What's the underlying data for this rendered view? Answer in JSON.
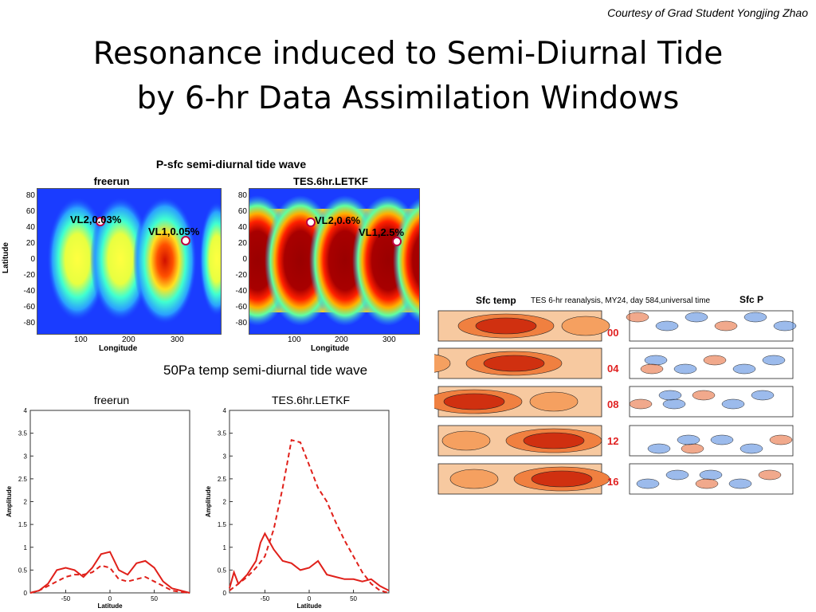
{
  "courtesy": "Courtesy of Grad Student Yongjing Zhao",
  "title_line1": "Resonance induced to Semi-Diurnal Tide",
  "title_line2": "by 6-hr Data Assimilation  Windows",
  "psfc": {
    "header": "P-sfc semi-diurnal tide wave",
    "panel_left_title": "freerun",
    "panel_right_title": "TES.6hr.LETKF",
    "y_ticks": [
      "80",
      "60",
      "40",
      "20",
      "0",
      "-20",
      "-40",
      "-60",
      "-80"
    ],
    "x_ticks": [
      "100",
      "200",
      "300"
    ],
    "ylabel": "Latitude",
    "xlabel": "Longitude",
    "left_vl2": "VL2,0.03%",
    "left_vl1": "VL1,0.05%",
    "right_vl2": "VL2,0.6%",
    "right_vl1": "VL1,2.5%"
  },
  "temp": {
    "header": "50Pa temp semi-diurnal tide wave",
    "panel_left_title": "freerun",
    "panel_right_title": "TES.6hr.LETKF",
    "y_ticks": [
      "4",
      "3.5",
      "3",
      "2.5",
      "2",
      "1.5",
      "1",
      "0.5",
      "0"
    ],
    "x_ticks": [
      "-50",
      "0",
      "50"
    ],
    "ylabel": "Amplitude",
    "xlabel": "Latitude"
  },
  "right_fig": {
    "sfc_temp": "Sfc temp",
    "caption": "TES 6-hr reanalysis, MY24, day 584,universal time",
    "sfc_p": "Sfc P",
    "hours": [
      "00",
      "04",
      "08",
      "12",
      "16"
    ]
  },
  "colors": {
    "line": "#e0201a",
    "jet_blue": "#1a3cff",
    "dark_red": "#9a0000",
    "hour_red": "#e02020"
  },
  "chart_data": [
    {
      "type": "line",
      "title": "freerun",
      "xlabel": "Latitude",
      "ylabel": "Amplitude",
      "xlim": [
        -90,
        90
      ],
      "ylim": [
        0,
        4
      ],
      "series": [
        {
          "style": "solid",
          "x": [
            -90,
            -80,
            -70,
            -60,
            -50,
            -40,
            -30,
            -20,
            -10,
            0,
            10,
            20,
            30,
            40,
            50,
            60,
            70,
            80,
            90
          ],
          "values": [
            0,
            0.05,
            0.2,
            0.5,
            0.55,
            0.5,
            0.35,
            0.55,
            0.85,
            0.9,
            0.5,
            0.4,
            0.65,
            0.7,
            0.55,
            0.25,
            0.1,
            0.05,
            0
          ]
        },
        {
          "style": "dashed",
          "x": [
            -90,
            -80,
            -70,
            -60,
            -50,
            -40,
            -30,
            -20,
            -10,
            0,
            10,
            20,
            30,
            40,
            50,
            60,
            70,
            80,
            90
          ],
          "values": [
            0,
            0.05,
            0.15,
            0.25,
            0.35,
            0.4,
            0.4,
            0.45,
            0.6,
            0.55,
            0.3,
            0.25,
            0.3,
            0.35,
            0.25,
            0.15,
            0.05,
            0.02,
            0
          ]
        }
      ]
    },
    {
      "type": "line",
      "title": "TES.6hr.LETKF",
      "xlabel": "Latitude",
      "ylabel": "Amplitude",
      "xlim": [
        -90,
        90
      ],
      "ylim": [
        0,
        4
      ],
      "series": [
        {
          "style": "solid",
          "x": [
            -90,
            -85,
            -80,
            -70,
            -60,
            -55,
            -50,
            -40,
            -30,
            -20,
            -10,
            0,
            10,
            20,
            30,
            40,
            50,
            60,
            70,
            80,
            90
          ],
          "values": [
            0.1,
            0.45,
            0.2,
            0.4,
            0.7,
            1.1,
            1.3,
            0.95,
            0.7,
            0.65,
            0.5,
            0.55,
            0.7,
            0.4,
            0.35,
            0.3,
            0.3,
            0.25,
            0.3,
            0.15,
            0.05
          ]
        },
        {
          "style": "dashed",
          "x": [
            -90,
            -80,
            -70,
            -60,
            -50,
            -40,
            -30,
            -20,
            -10,
            0,
            10,
            20,
            30,
            40,
            50,
            60,
            70,
            80,
            90
          ],
          "values": [
            0.05,
            0.2,
            0.35,
            0.55,
            0.8,
            1.4,
            2.3,
            3.35,
            3.3,
            2.8,
            2.3,
            2.0,
            1.55,
            1.15,
            0.8,
            0.45,
            0.2,
            0.05,
            0
          ]
        }
      ]
    }
  ]
}
